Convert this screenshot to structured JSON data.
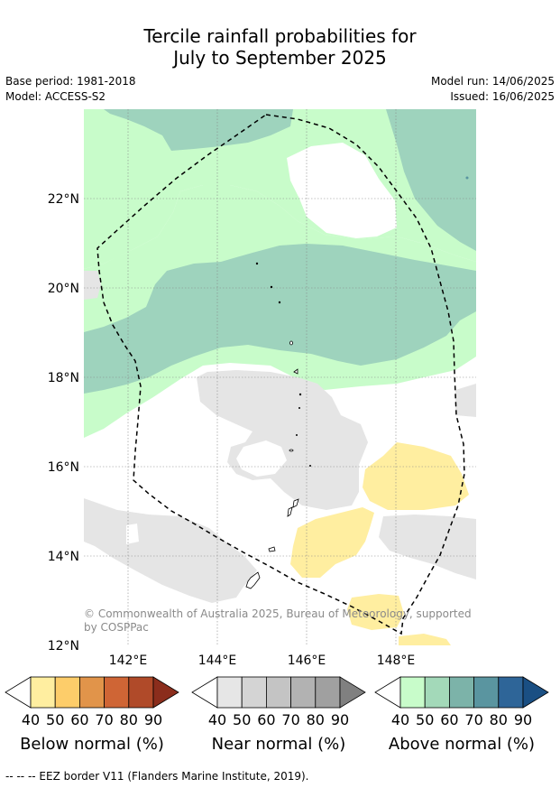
{
  "header": {
    "title_line1": "Tercile rainfall probabilities for",
    "title_line2": "July to September 2025",
    "base_period": "Base period: 1981-2018",
    "model": "Model: ACCESS-S2",
    "model_run": "Model run: 14/06/2025",
    "issued": "Issued: 16/06/2025"
  },
  "map": {
    "lon_ticks": [
      "142°E",
      "144°E",
      "146°E",
      "148°E"
    ],
    "lat_ticks": [
      "22°N",
      "20°N",
      "18°N",
      "16°N",
      "14°N",
      "12°N"
    ],
    "copyright_line1": "© Commonwealth of Australia 2025, Bureau of Meteorology, supported",
    "copyright_line2": "by COSPPac"
  },
  "legends": {
    "below": {
      "title": "Below normal (%)",
      "ticks": [
        "40",
        "50",
        "60",
        "70",
        "80",
        "90"
      ],
      "colors": [
        "#ffffff",
        "#ffeea0",
        "#fdcd6a",
        "#e1944a",
        "#cf6535",
        "#b04a29",
        "#8b2d1c"
      ]
    },
    "near": {
      "title": "Near normal (%)",
      "ticks": [
        "40",
        "50",
        "60",
        "70",
        "80",
        "90"
      ],
      "colors": [
        "#ffffff",
        "#e6e6e6",
        "#d4d4d4",
        "#c4c4c4",
        "#b2b2b2",
        "#a0a0a0",
        "#808080"
      ]
    },
    "above": {
      "title": "Above normal (%)",
      "ticks": [
        "40",
        "50",
        "60",
        "70",
        "80",
        "90"
      ],
      "colors": [
        "#ffffff",
        "#c8fcca",
        "#a3d9b9",
        "#7cb3a9",
        "#5a95a0",
        "#2e6598",
        "#1a4f83"
      ]
    }
  },
  "footer": {
    "eez_note": "--  --  -- EEZ border V11 (Flanders Marine Institute, 2019)."
  },
  "colors": {
    "above_40": "#c8fcca",
    "above_50": "#9ed3bd",
    "near_40": "#e5e5e5",
    "below_40": "#ffeea0"
  }
}
